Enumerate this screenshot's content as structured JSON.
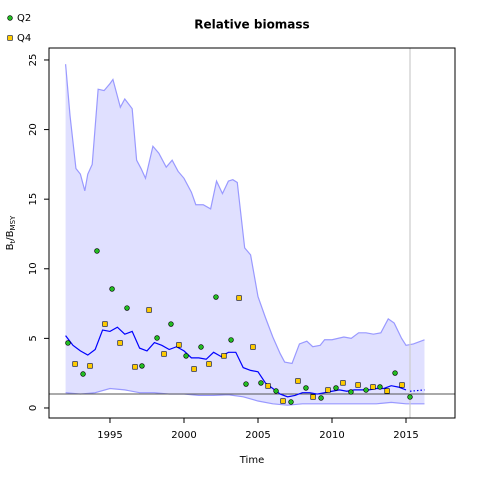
{
  "chart_data": {
    "type": "scatter",
    "title": "Relative biomass",
    "xlabel": "Time",
    "ylabel": [
      "B",
      "t",
      "/B",
      "MSY"
    ],
    "xlim": [
      1990.88,
      2018.31
    ],
    "ylim": [
      -0.72,
      25.86
    ],
    "xticks": [
      1995,
      2000,
      2005,
      2010,
      2015
    ],
    "yticks": [
      0,
      5,
      10,
      15,
      20,
      25
    ],
    "reference_line": 1,
    "last_observation": 2015.27,
    "series": [
      {
        "name": "Q2",
        "color": "#22bb22",
        "marker": "circle",
        "x": [
          1992.16,
          1993.18,
          1994.12,
          1995.14,
          1996.15,
          1997.16,
          1998.18,
          1999.12,
          2000.14,
          2001.15,
          2002.16,
          2003.18,
          2004.19,
          2005.2,
          2006.22,
          2007.23,
          2008.24,
          2009.26,
          2010.27,
          2011.28,
          2012.3,
          2013.24,
          2014.26,
          2015.27
        ],
        "values": [
          4.67,
          2.44,
          11.28,
          8.55,
          7.18,
          3.02,
          5.03,
          6.03,
          3.74,
          4.38,
          7.97,
          4.89,
          1.72,
          1.8,
          1.22,
          0.43,
          1.44,
          0.72,
          1.44,
          1.15,
          1.29,
          1.51,
          2.51,
          0.79
        ]
      },
      {
        "name": "Q4",
        "color": "#ffcc00",
        "marker": "square",
        "x": [
          1992.64,
          1993.65,
          1994.66,
          1995.68,
          1996.69,
          1997.64,
          1998.65,
          1999.66,
          2000.68,
          2001.69,
          2002.7,
          2003.72,
          2004.66,
          2005.68,
          2006.69,
          2007.7,
          2008.72,
          2009.73,
          2010.74,
          2011.76,
          2012.77,
          2013.72,
          2014.73
        ],
        "values": [
          3.16,
          3.02,
          6.03,
          4.67,
          2.95,
          7.04,
          3.88,
          4.53,
          2.8,
          3.16,
          3.74,
          7.9,
          4.38,
          1.58,
          0.5,
          1.94,
          0.79,
          1.29,
          1.8,
          1.65,
          1.51,
          1.22,
          1.65
        ]
      }
    ],
    "median": {
      "color": "#0000ff",
      "x": [
        1992,
        1992.5,
        1993,
        1993.5,
        1994,
        1994.5,
        1995,
        1995.5,
        1996,
        1996.5,
        1997,
        1997.5,
        1998,
        1998.5,
        1999,
        1999.5,
        2000,
        2000.5,
        2001,
        2001.5,
        2002,
        2002.5,
        2003,
        2003.5,
        2004,
        2004.5,
        2005,
        2005.5,
        2006,
        2006.5,
        2007,
        2007.5,
        2008,
        2008.5,
        2009,
        2009.5,
        2010,
        2010.5,
        2011,
        2011.5,
        2012,
        2012.5,
        2013,
        2013.5,
        2014,
        2014.5,
        2015
      ],
      "values": [
        5.2,
        4.5,
        4.1,
        3.8,
        4.2,
        5.6,
        5.5,
        5.8,
        5.3,
        5.5,
        4.3,
        4.1,
        4.7,
        4.5,
        4.2,
        4.4,
        4.1,
        3.6,
        3.6,
        3.5,
        4.0,
        3.7,
        4.0,
        4.0,
        2.9,
        2.7,
        2.6,
        1.8,
        1.4,
        1.0,
        0.8,
        0.9,
        1.1,
        1.1,
        1.0,
        1.1,
        1.2,
        1.3,
        1.2,
        1.3,
        1.3,
        1.3,
        1.4,
        1.4,
        1.6,
        1.5,
        1.3
      ]
    },
    "forecast": {
      "color": "#0000ff",
      "x": [
        2015.27,
        2016.25
      ],
      "values": [
        1.2,
        1.3
      ]
    },
    "band": {
      "color": "#e0e0ff",
      "edge": "#9999ff",
      "upper": {
        "x": [
          1992,
          1992.3,
          1992.7,
          1993,
          1993.3,
          1993.5,
          1993.8,
          1994.2,
          1994.6,
          1995,
          1995.2,
          1995.7,
          1996,
          1996.5,
          1996.8,
          1997.1,
          1997.4,
          1997.9,
          1998.3,
          1998.8,
          1999.2,
          1999.6,
          2000,
          2000.5,
          2000.8,
          2001.3,
          2001.8,
          2002.2,
          2002.6,
          2003,
          2003.3,
          2003.6,
          2004.1,
          2004.5,
          2005,
          2005.5,
          2006,
          2006.5,
          2006.8,
          2007.3,
          2007.8,
          2008.3,
          2008.7,
          2009.2,
          2009.5,
          2010,
          2010.8,
          2011.3,
          2011.8,
          2012.3,
          2012.8,
          2013.3,
          2013.8,
          2014.2,
          2014.7,
          2015,
          2015.5,
          2016.25
        ],
        "values": [
          24.7,
          21,
          17.2,
          16.8,
          15.6,
          16.8,
          17.5,
          22.9,
          22.8,
          23.3,
          23.6,
          21.6,
          22.2,
          21.5,
          17.8,
          17.2,
          16.5,
          18.8,
          18.3,
          17.3,
          17.8,
          17,
          16.5,
          15.5,
          14.6,
          14.6,
          14.3,
          16.3,
          15.4,
          16.3,
          16.4,
          16.2,
          11.5,
          11,
          8,
          6.5,
          5.1,
          3.9,
          3.3,
          3.2,
          4.6,
          4.8,
          4.4,
          4.5,
          4.9,
          4.9,
          5.1,
          5.0,
          5.4,
          5.4,
          5.3,
          5.4,
          6.4,
          6.1,
          5.0,
          4.5,
          4.6,
          4.9
        ]
      },
      "lower": {
        "x": [
          1992,
          1993,
          1994,
          1995,
          1996,
          1997,
          1998,
          1999,
          2000,
          2001,
          2002,
          2003,
          2004,
          2005,
          2006,
          2007,
          2008,
          2009,
          2010,
          2011,
          2012,
          2013,
          2014,
          2015,
          2016.25
        ],
        "values": [
          1.1,
          1.0,
          1.1,
          1.4,
          1.3,
          1.1,
          1.1,
          1.0,
          1.0,
          0.9,
          0.9,
          0.95,
          0.8,
          0.5,
          0.3,
          0.2,
          0.3,
          0.3,
          0.3,
          0.3,
          0.3,
          0.3,
          0.4,
          0.3,
          0.3
        ]
      }
    }
  }
}
